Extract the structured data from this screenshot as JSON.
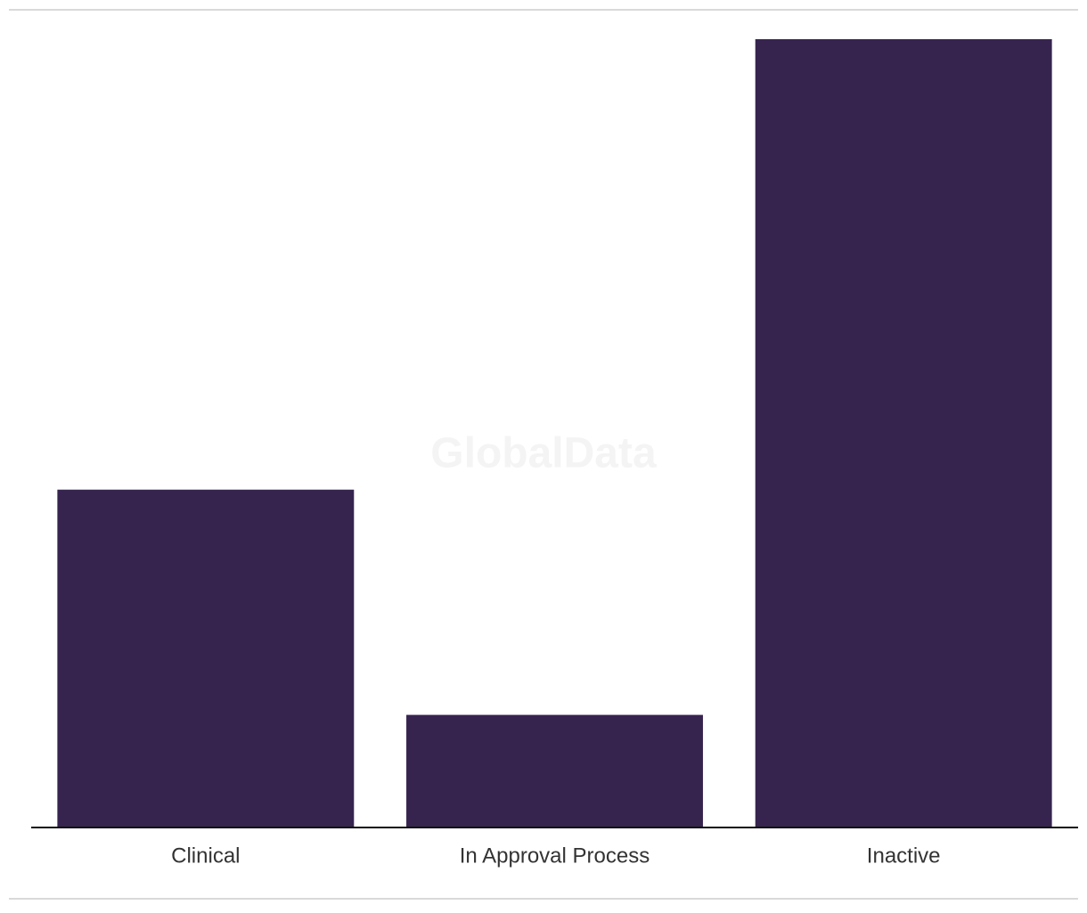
{
  "chart_data": {
    "type": "bar",
    "watermark": "GlobalData",
    "categories": [
      "Clinical",
      "In Approval Process",
      "Inactive"
    ],
    "values": [
      3,
      1,
      7
    ],
    "color": "#36244f",
    "ylim": [
      0,
      7
    ]
  }
}
